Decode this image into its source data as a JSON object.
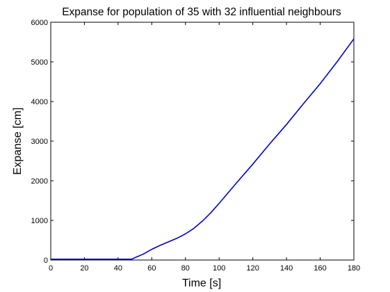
{
  "chart_data": {
    "type": "line",
    "title": "Expanse for population of 35 with 32 influential neighbours",
    "xlabel": "Time [s]",
    "ylabel": "Expanse [cm]",
    "xlim": [
      0,
      180
    ],
    "ylim": [
      0,
      6000
    ],
    "xticks": [
      0,
      20,
      40,
      60,
      80,
      100,
      120,
      140,
      160,
      180
    ],
    "yticks": [
      0,
      1000,
      2000,
      3000,
      4000,
      5000,
      6000
    ],
    "xtick_labels": [
      "0",
      "20",
      "40",
      "60",
      "80",
      "100",
      "120",
      "140",
      "160",
      "180"
    ],
    "ytick_labels": [
      "0",
      "1000",
      "2000",
      "3000",
      "4000",
      "5000",
      "6000"
    ],
    "grid": false,
    "line_color": "#0000cc",
    "series": [
      {
        "x": [
          0,
          10,
          20,
          30,
          40,
          48,
          50,
          55,
          60,
          65,
          70,
          75,
          80,
          85,
          90,
          95,
          100,
          110,
          120,
          130,
          140,
          150,
          160,
          170,
          180
        ],
        "y": [
          20,
          20,
          20,
          20,
          20,
          20,
          60,
          150,
          270,
          370,
          460,
          550,
          660,
          800,
          980,
          1190,
          1430,
          1930,
          2420,
          2930,
          3420,
          3940,
          4450,
          5000,
          5580
        ]
      }
    ]
  }
}
